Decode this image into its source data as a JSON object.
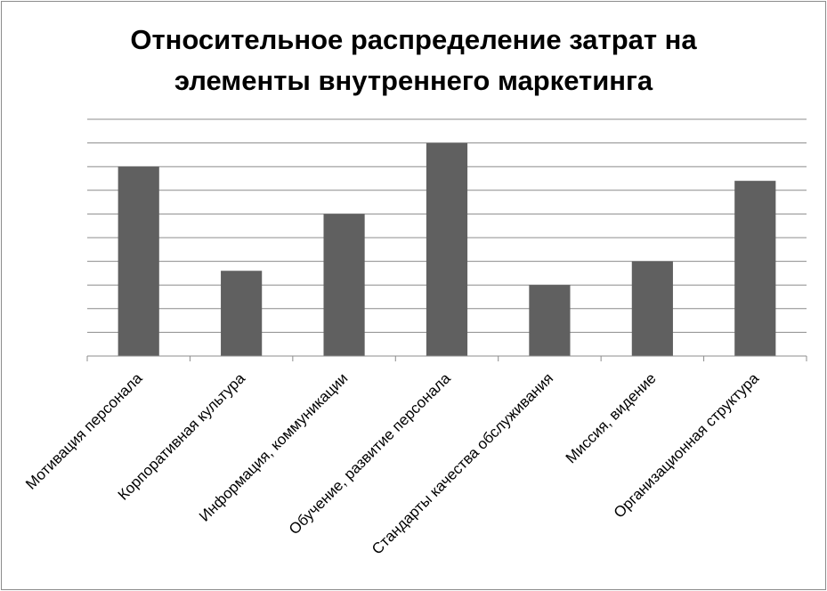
{
  "chart_data": {
    "type": "bar",
    "title_lines": [
      "Относительное распределение затрат на",
      "элементы внутреннего маркетинга"
    ],
    "categories": [
      "Мотивация персонала",
      "Корпоративная культура",
      "Информация, коммуникации",
      "Обучение, развитие персонала",
      "Стандарты качества обслуживания",
      "Миссия, видение",
      "Организационная структура"
    ],
    "values": [
      8,
      3.6,
      6,
      9,
      3,
      4,
      7.4
    ],
    "ylim": [
      0,
      10
    ],
    "gridlines": 10,
    "bar_color": "#606060",
    "grid_color": "#8c8c8c",
    "y_tick_labels_shown": false,
    "legend": "none"
  }
}
